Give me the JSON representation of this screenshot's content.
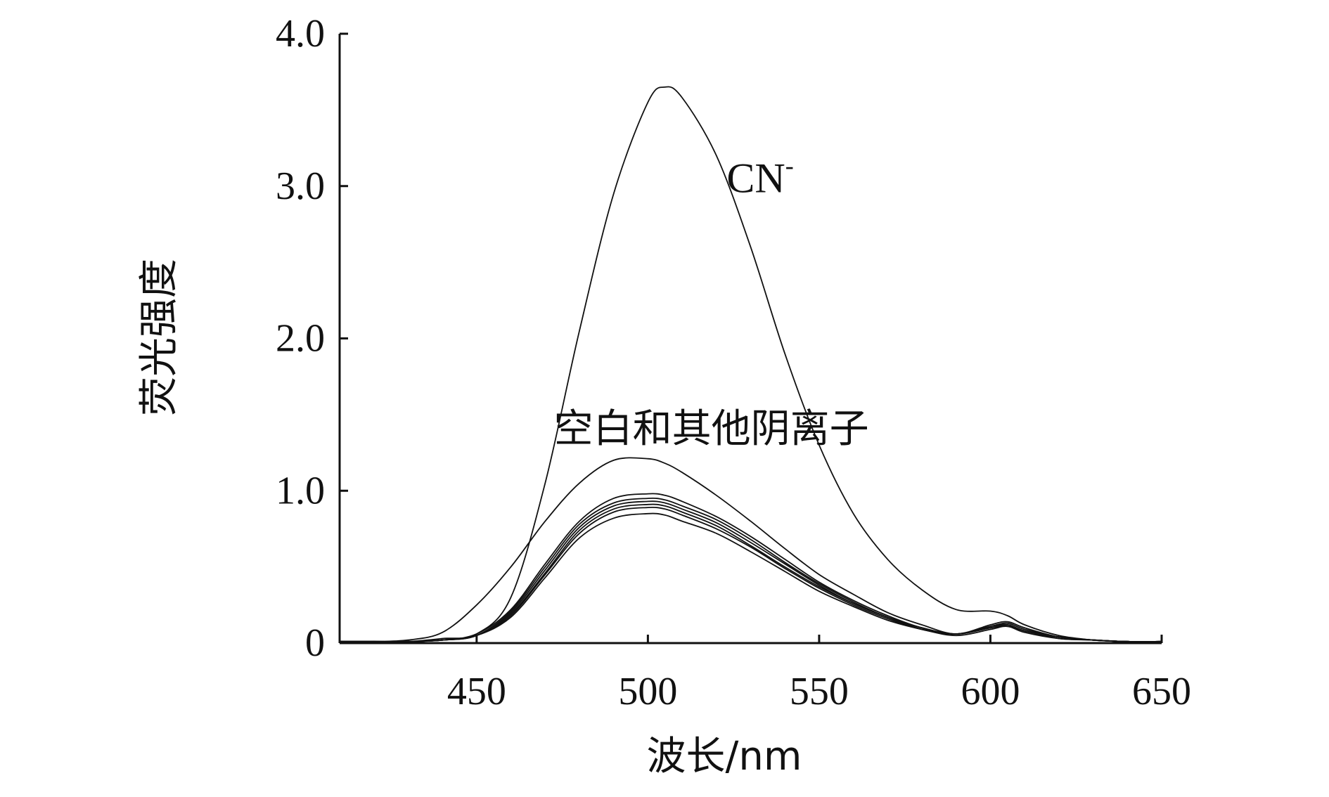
{
  "chart_data": {
    "type": "line",
    "title": "",
    "xlabel": "波长/nm",
    "ylabel": "荧光强度",
    "xlim": [
      410,
      650
    ],
    "ylim": [
      0,
      4.0
    ],
    "x_ticks": [
      {
        "value": 450,
        "label": "450"
      },
      {
        "value": 500,
        "label": "500"
      },
      {
        "value": 550,
        "label": "550"
      },
      {
        "value": 600,
        "label": "600"
      },
      {
        "value": 650,
        "label": "650"
      }
    ],
    "y_ticks": [
      {
        "value": 0,
        "label": "0"
      },
      {
        "value": 1.0,
        "label": "1.0"
      },
      {
        "value": 2.0,
        "label": "2.0"
      },
      {
        "value": 3.0,
        "label": "3.0"
      },
      {
        "value": 4.0,
        "label": "4.0"
      }
    ],
    "grid": false,
    "legend": "none",
    "annotations": [
      {
        "text": "CN",
        "superscript": "-",
        "x": 523,
        "y": 2.96
      },
      {
        "text": "空白和其他阴离子",
        "x": 498,
        "y": 1.32
      }
    ],
    "x": [
      410,
      420,
      430,
      440,
      450,
      460,
      470,
      480,
      490,
      500,
      505,
      510,
      520,
      530,
      540,
      550,
      560,
      570,
      580,
      590,
      600,
      605,
      610,
      620,
      630,
      640,
      650
    ],
    "series": [
      {
        "values": [
          0.01,
          0.01,
          0.01,
          0.03,
          0.06,
          0.3,
          1.05,
          2.05,
          2.95,
          3.55,
          3.65,
          3.58,
          3.2,
          2.6,
          1.9,
          1.3,
          0.85,
          0.55,
          0.35,
          0.22,
          0.21,
          0.18,
          0.12,
          0.05,
          0.02,
          0.01,
          0.01
        ]
      },
      {
        "values": [
          0.01,
          0.01,
          0.02,
          0.07,
          0.25,
          0.5,
          0.8,
          1.05,
          1.2,
          1.21,
          1.18,
          1.12,
          0.97,
          0.8,
          0.62,
          0.45,
          0.32,
          0.2,
          0.12,
          0.06,
          0.12,
          0.14,
          0.1,
          0.04,
          0.02,
          0.01,
          0.01
        ]
      },
      {
        "values": [
          0.01,
          0.01,
          0.01,
          0.02,
          0.06,
          0.22,
          0.52,
          0.8,
          0.95,
          0.98,
          0.97,
          0.93,
          0.83,
          0.7,
          0.55,
          0.4,
          0.28,
          0.18,
          0.1,
          0.06,
          0.11,
          0.13,
          0.09,
          0.04,
          0.02,
          0.01,
          0.01
        ]
      },
      {
        "values": [
          0.01,
          0.01,
          0.01,
          0.02,
          0.05,
          0.2,
          0.48,
          0.76,
          0.9,
          0.93,
          0.92,
          0.88,
          0.79,
          0.66,
          0.52,
          0.38,
          0.26,
          0.17,
          0.1,
          0.06,
          0.1,
          0.12,
          0.08,
          0.04,
          0.02,
          0.01,
          0.01
        ]
      },
      {
        "values": [
          0.01,
          0.01,
          0.01,
          0.02,
          0.05,
          0.18,
          0.45,
          0.72,
          0.86,
          0.89,
          0.88,
          0.84,
          0.75,
          0.63,
          0.49,
          0.36,
          0.25,
          0.16,
          0.09,
          0.06,
          0.1,
          0.11,
          0.08,
          0.03,
          0.02,
          0.01,
          0.01
        ]
      },
      {
        "values": [
          0.01,
          0.01,
          0.01,
          0.02,
          0.05,
          0.17,
          0.43,
          0.69,
          0.82,
          0.85,
          0.84,
          0.8,
          0.72,
          0.6,
          0.47,
          0.34,
          0.24,
          0.15,
          0.09,
          0.05,
          0.09,
          0.11,
          0.07,
          0.03,
          0.02,
          0.01,
          0.01
        ]
      },
      {
        "values": [
          0.01,
          0.01,
          0.01,
          0.02,
          0.05,
          0.19,
          0.46,
          0.74,
          0.88,
          0.91,
          0.9,
          0.86,
          0.77,
          0.64,
          0.5,
          0.37,
          0.26,
          0.17,
          0.09,
          0.06,
          0.1,
          0.12,
          0.08,
          0.04,
          0.02,
          0.01,
          0.01
        ]
      },
      {
        "values": [
          0.01,
          0.01,
          0.01,
          0.02,
          0.05,
          0.21,
          0.5,
          0.78,
          0.92,
          0.95,
          0.94,
          0.9,
          0.81,
          0.68,
          0.53,
          0.39,
          0.27,
          0.17,
          0.1,
          0.06,
          0.11,
          0.12,
          0.08,
          0.04,
          0.02,
          0.01,
          0.01
        ]
      }
    ]
  }
}
